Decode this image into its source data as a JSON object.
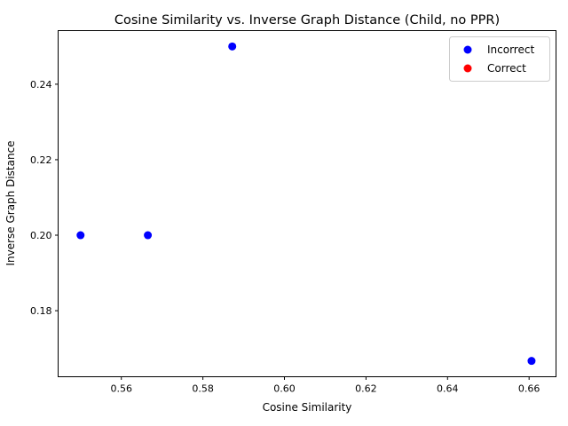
{
  "chart_data": {
    "type": "scatter",
    "title": "Cosine Similarity vs. Inverse Graph Distance (Child, no PPR)",
    "xlabel": "Cosine Similarity",
    "ylabel": "Inverse Graph Distance",
    "xlim": [
      0.5445,
      0.6666
    ],
    "ylim": [
      0.1625,
      0.2542
    ],
    "xticks": [
      "0.56",
      "0.58",
      "0.60",
      "0.62",
      "0.64",
      "0.66"
    ],
    "xtick_values": [
      0.56,
      0.58,
      0.6,
      0.62,
      0.64,
      0.66
    ],
    "yticks": [
      "0.18",
      "0.20",
      "0.22",
      "0.24"
    ],
    "ytick_values": [
      0.18,
      0.2,
      0.22,
      0.24
    ],
    "grid": false,
    "legend_position": "top-right",
    "series": [
      {
        "name": "Incorrect",
        "color": "#0000ff",
        "points": [
          {
            "x": 0.55,
            "y": 0.2
          },
          {
            "x": 0.5665,
            "y": 0.2
          },
          {
            "x": 0.5872,
            "y": 0.25
          },
          {
            "x": 0.6606,
            "y": 0.1667
          }
        ]
      },
      {
        "name": "Correct",
        "color": "#ff0000",
        "points": []
      }
    ]
  }
}
